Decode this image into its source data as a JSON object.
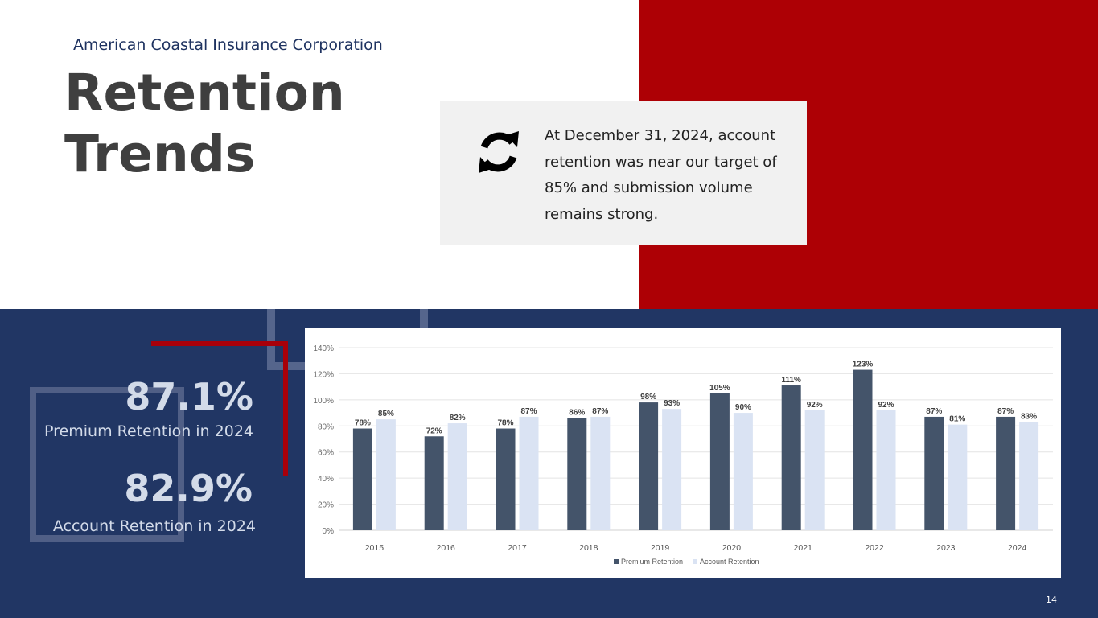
{
  "header": {
    "company": "American Coastal Insurance Corporation",
    "title_line1": "Retention",
    "title_line2": "Trends"
  },
  "callout": {
    "icon": "refresh-icon",
    "text": "At December 31, 2024, account retention was near our target of 85% and submission volume remains strong."
  },
  "stats": [
    {
      "value": "87.1%",
      "label": "Premium Retention in 2024"
    },
    {
      "value": "82.9%",
      "label": "Account Retention in 2024"
    }
  ],
  "page_number": "14",
  "colors": {
    "accent_red": "#ad0005",
    "navy": "#213664",
    "premium_series": "#44546a",
    "account_series": "#dae3f3"
  },
  "chart_data": {
    "type": "bar",
    "categories": [
      "2015",
      "2016",
      "2017",
      "2018",
      "2019",
      "2020",
      "2021",
      "2022",
      "2023",
      "2024"
    ],
    "series": [
      {
        "name": "Premium Retention",
        "values": [
          78,
          72,
          78,
          86,
          98,
          105,
          111,
          123,
          87,
          87
        ],
        "labels": [
          "78%",
          "72%",
          "78%",
          "86%",
          "98%",
          "105%",
          "111%",
          "123%",
          "87%",
          "87%"
        ]
      },
      {
        "name": "Account Retention",
        "values": [
          85,
          82,
          87,
          87,
          93,
          90,
          92,
          92,
          81,
          83
        ],
        "labels": [
          "85%",
          "82%",
          "87%",
          "87%",
          "93%",
          "90%",
          "92%",
          "92%",
          "81%",
          "83%"
        ]
      }
    ],
    "ylim": [
      0,
      140
    ],
    "yticks": [
      "0%",
      "20%",
      "40%",
      "60%",
      "80%",
      "100%",
      "120%",
      "140%"
    ],
    "grid": true,
    "legend_position": "bottom"
  }
}
